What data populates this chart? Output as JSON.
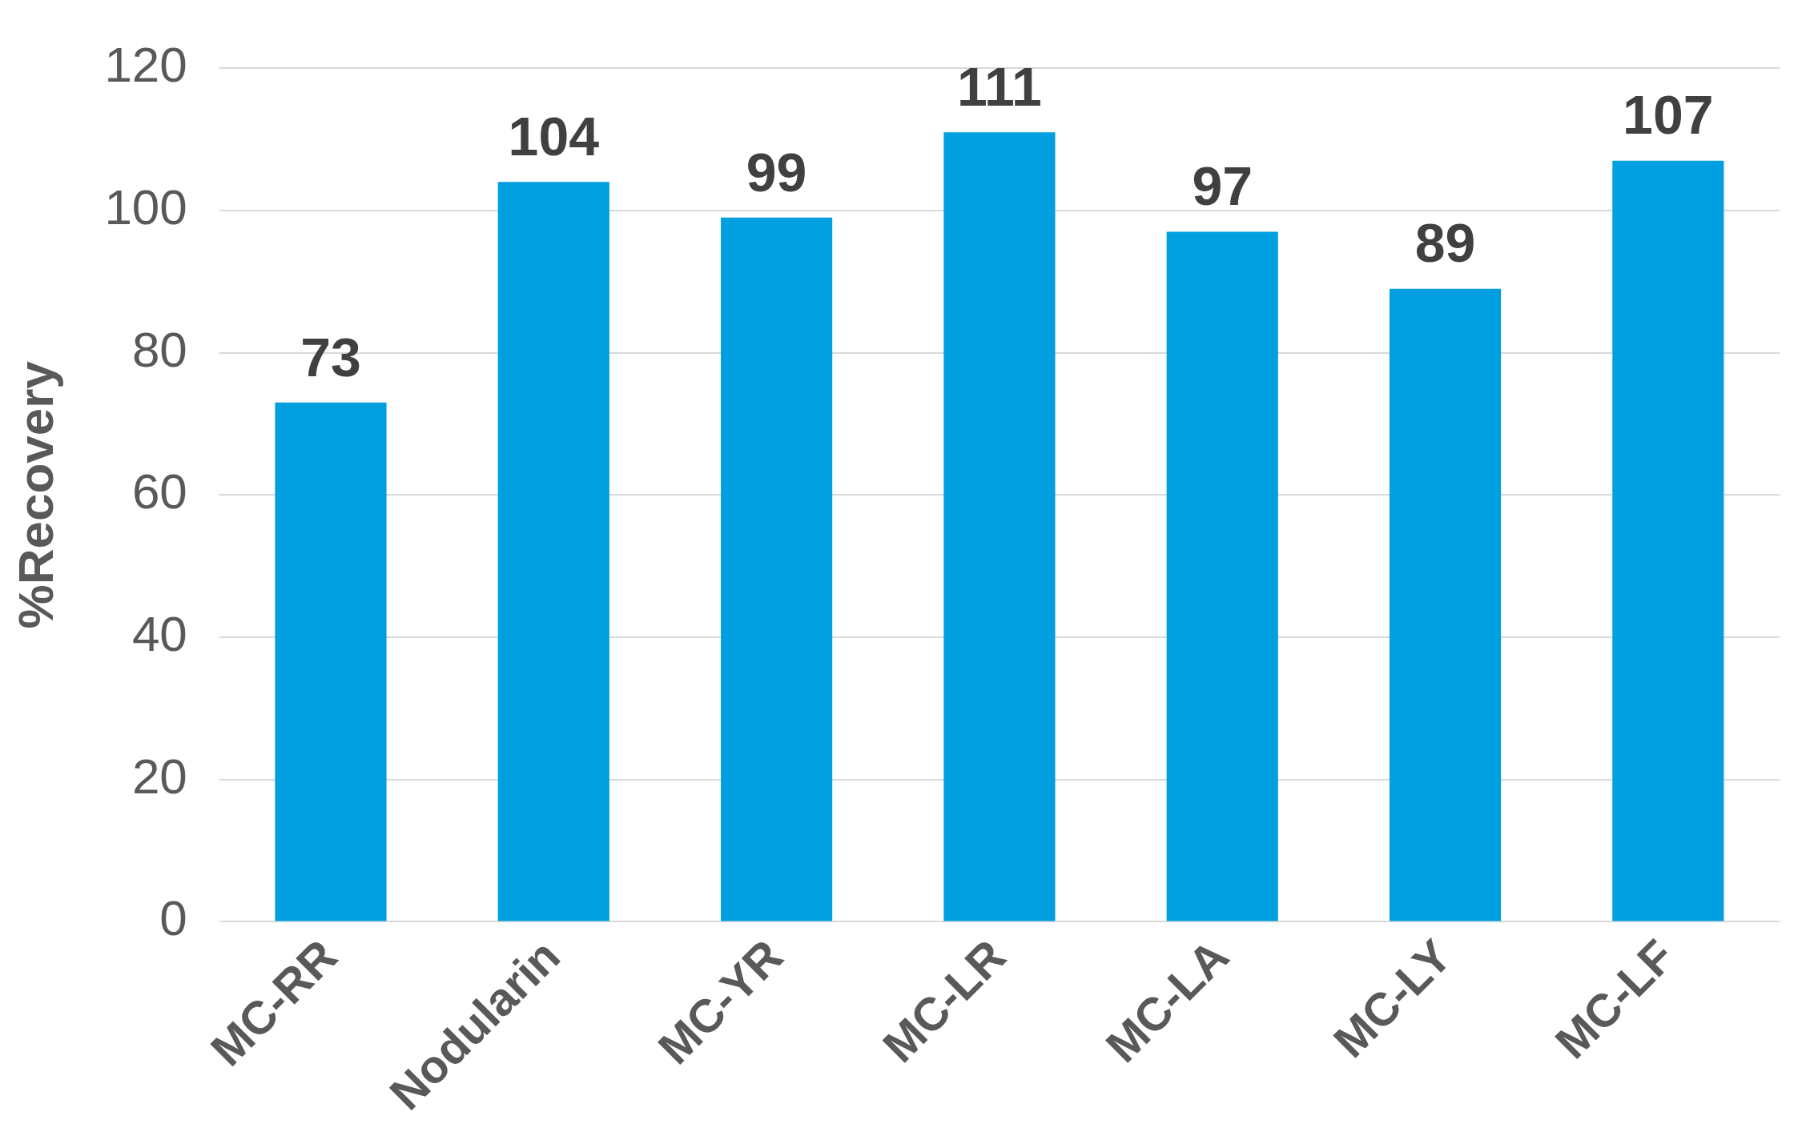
{
  "chart_data": {
    "type": "bar",
    "ylabel": "%Recovery",
    "categories": [
      "MC-RR",
      "Nodularin",
      "MC-YR",
      "MC-LR",
      "MC-LA",
      "MC-LY",
      "MC-LF"
    ],
    "values": [
      73,
      104,
      99,
      111,
      97,
      89,
      107
    ],
    "color": "#009fdf",
    "ylim": [
      0,
      120
    ],
    "yticks": [
      0,
      20,
      40,
      60,
      80,
      100,
      120
    ],
    "grid": "y",
    "data_labels": true,
    "legend": false
  }
}
